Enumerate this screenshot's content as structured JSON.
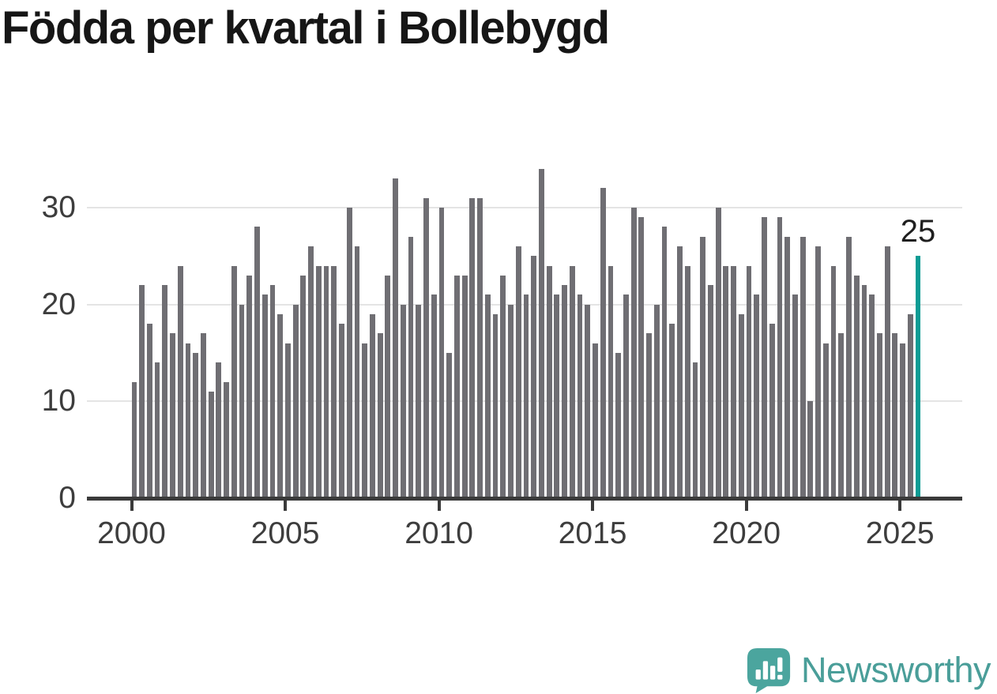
{
  "title": "Födda per kvartal i Bollebygd",
  "annotation": {
    "label": "25"
  },
  "watermark": {
    "brand": "Newsworthy"
  },
  "colors": {
    "bar": "#6f6e73",
    "highlight": "#0c9c94",
    "grid": "#e4e4e4",
    "axis": "#3a3a3a",
    "title": "#161616",
    "tick_label": "#3d3d3d",
    "logo_icon": "#4ba59e",
    "logo_text": "#4a9e99"
  },
  "chart_data": {
    "type": "bar",
    "title": "Födda per kvartal i Bollebygd",
    "xlabel": "",
    "ylabel": "",
    "x_start": "2000 Q1",
    "x_end": "2025 Q3",
    "x_tick_labels": [
      "2000",
      "2005",
      "2010",
      "2015",
      "2020",
      "2025"
    ],
    "y_ticks": [
      0,
      10,
      20,
      30
    ],
    "ylim": [
      0,
      36
    ],
    "grid": "horizontal",
    "legend": "none",
    "series": [
      {
        "name": "Födda per kvartal",
        "values": [
          12,
          22,
          18,
          14,
          22,
          17,
          24,
          16,
          15,
          17,
          11,
          14,
          12,
          24,
          20,
          23,
          28,
          21,
          22,
          19,
          16,
          20,
          23,
          26,
          24,
          24,
          24,
          18,
          30,
          26,
          16,
          19,
          17,
          23,
          33,
          20,
          27,
          20,
          31,
          21,
          30,
          15,
          23,
          23,
          31,
          31,
          21,
          19,
          23,
          20,
          26,
          21,
          25,
          34,
          24,
          21,
          22,
          24,
          21,
          20,
          16,
          32,
          24,
          15,
          21,
          30,
          29,
          17,
          20,
          28,
          18,
          26,
          24,
          14,
          27,
          22,
          30,
          24,
          24,
          19,
          24,
          21,
          29,
          18,
          29,
          27,
          21,
          27,
          10,
          26,
          16,
          24,
          17,
          27,
          23,
          22,
          21,
          17,
          26,
          17,
          16,
          19,
          25
        ]
      }
    ],
    "highlight": {
      "quarter": "2025 Q3",
      "value": 25,
      "label": "25"
    }
  }
}
